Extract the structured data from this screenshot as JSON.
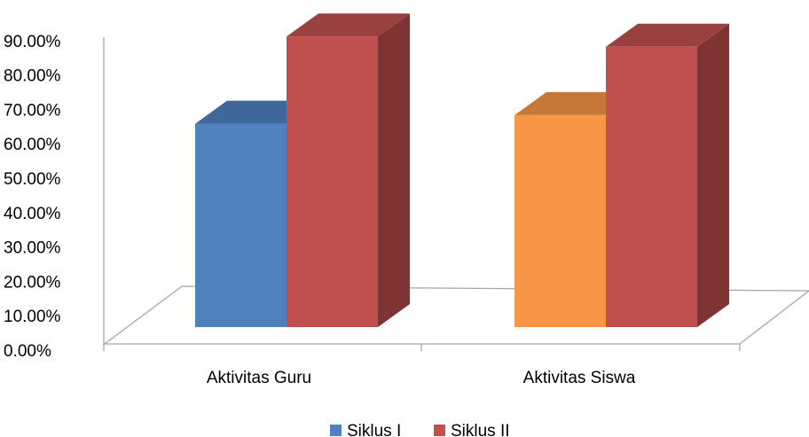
{
  "chart_data": {
    "type": "bar",
    "categories": [
      "Aktivitas Guru",
      "Aktivitas Siswa"
    ],
    "series": [
      {
        "name": "Siklus I",
        "values": [
          59.5,
          62.0
        ],
        "colors": [
          "#4F81BD",
          "#F79646"
        ]
      },
      {
        "name": "Siklus II",
        "values": [
          85.0,
          82.0
        ],
        "colors": [
          "#C0504D",
          "#C0504D"
        ]
      }
    ],
    "ylim": [
      0,
      90
    ],
    "yticks": [
      "0.00%",
      "10.00%",
      "20.00%",
      "30.00%",
      "40.00%",
      "50.00%",
      "60.00%",
      "70.00%",
      "80.00%",
      "90.00%"
    ],
    "legend_position": "bottom",
    "grid": false,
    "style": "3d-column"
  }
}
